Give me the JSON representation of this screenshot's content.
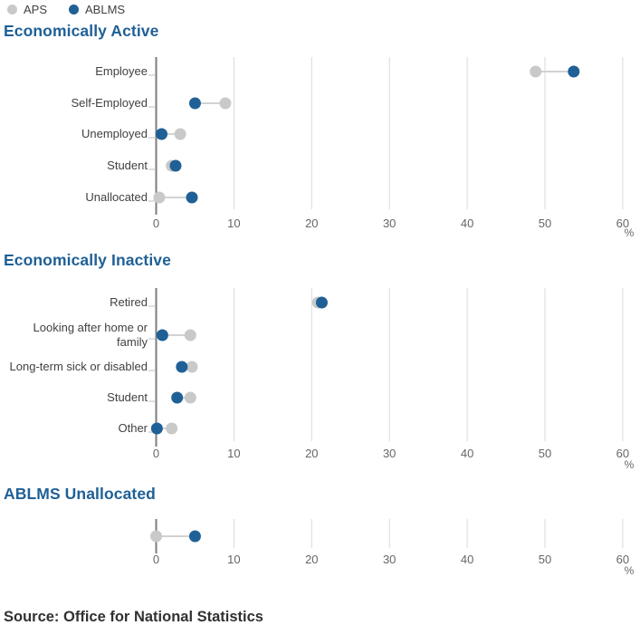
{
  "legend": {
    "items": [
      {
        "label": "APS",
        "color": "#c9c9c9"
      },
      {
        "label": "ABLMS",
        "color": "#1f6096"
      }
    ]
  },
  "chart_data": [
    {
      "type": "scatter",
      "subtype": "horizontal-dot-plot",
      "title": "Economically Active",
      "categories": [
        "Employee",
        "Self-Employed",
        "Unemployed",
        "Student",
        "Unallocated"
      ],
      "series": [
        {
          "name": "APS",
          "color": "#c9c9c9",
          "values": [
            48.8,
            8.9,
            3.1,
            2.0,
            0.4
          ]
        },
        {
          "name": "ABLMS",
          "color": "#1f6096",
          "values": [
            53.7,
            5.0,
            0.7,
            2.5,
            4.6
          ]
        }
      ],
      "xticks": [
        0,
        10,
        20,
        30,
        40,
        50,
        60
      ],
      "xlim": [
        0,
        62
      ],
      "unit": "%",
      "grid": true,
      "legend_position": "top-left"
    },
    {
      "type": "scatter",
      "subtype": "horizontal-dot-plot",
      "title": "Economically Inactive",
      "categories": [
        "Retired",
        "Looking after home or family",
        "Long-term sick or disabled",
        "Student",
        "Other"
      ],
      "series": [
        {
          "name": "APS",
          "color": "#c9c9c9",
          "values": [
            20.8,
            4.4,
            4.6,
            4.4,
            2.0
          ]
        },
        {
          "name": "ABLMS",
          "color": "#1f6096",
          "values": [
            21.3,
            0.8,
            3.3,
            2.7,
            0.1
          ]
        }
      ],
      "xticks": [
        0,
        10,
        20,
        30,
        40,
        50,
        60
      ],
      "xlim": [
        0,
        62
      ],
      "unit": "%",
      "grid": true,
      "legend_position": "top-left"
    },
    {
      "type": "scatter",
      "subtype": "horizontal-dot-plot",
      "title": "ABLMS Unallocated",
      "categories": [
        ""
      ],
      "series": [
        {
          "name": "APS",
          "color": "#c9c9c9",
          "values": [
            0.0
          ]
        },
        {
          "name": "ABLMS",
          "color": "#1f6096",
          "values": [
            5.0
          ]
        }
      ],
      "xticks": [
        0,
        10,
        20,
        30,
        40,
        50,
        60
      ],
      "xlim": [
        0,
        62
      ],
      "unit": "%",
      "grid": true,
      "legend_position": "top-left"
    }
  ],
  "source": {
    "text": "Source: Office for National Statistics"
  },
  "colors": {
    "accent_blue": "#1f6096",
    "dot_gray": "#c9c9c9",
    "gridline": "#d9d9d9",
    "zero_axis": "#7d7d7d",
    "connector": "#d2d2d2",
    "tick_label": "#666666",
    "category_label": "#414042",
    "title_text": "#1f6096",
    "source_text": "#323132",
    "category_tick": "#bfbfbf"
  }
}
